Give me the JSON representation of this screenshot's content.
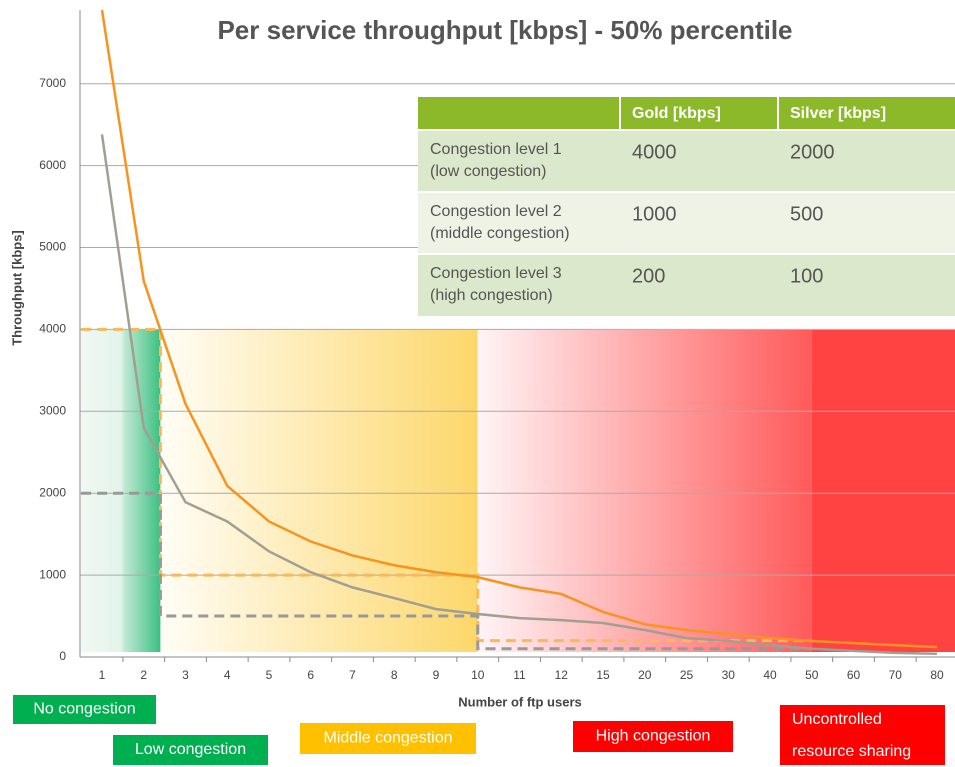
{
  "chart_data": {
    "type": "line",
    "title": "Per service throughput [kbps] - 50% percentile",
    "xlabel": "Number of ftp users",
    "ylabel": "Throughput [kbps]",
    "categories": [
      "1",
      "2",
      "3",
      "4",
      "5",
      "6",
      "7",
      "8",
      "9",
      "10",
      "11",
      "12",
      "15",
      "20",
      "25",
      "30",
      "40",
      "50",
      "60",
      "70",
      "80"
    ],
    "series": [
      {
        "color": "#f7931e",
        "values": [
          7900,
          4590,
          3090,
          2090,
          1655,
          1410,
          1240,
          1120,
          1035,
          975,
          850,
          770,
          550,
          400,
          330,
          280,
          230,
          195,
          170,
          145,
          120
        ]
      },
      {
        "color": "#a39e92",
        "values": [
          6380,
          2800,
          1890,
          1655,
          1290,
          1035,
          850,
          720,
          585,
          525,
          475,
          450,
          415,
          330,
          230,
          195,
          145,
          100,
          75,
          50,
          40
        ]
      }
    ],
    "ylim": [
      0,
      7900
    ],
    "yticks": [
      0,
      1000,
      2000,
      3000,
      4000,
      5000,
      6000,
      7000
    ],
    "grid": true
  },
  "table": {
    "columns": [
      "Gold [kbps]",
      "Silver [kbps]"
    ],
    "rows": [
      {
        "label": [
          "Congestion level 1",
          "(low congestion)"
        ],
        "values": [
          4000,
          2000
        ]
      },
      {
        "label": [
          "Congestion level 2",
          "(middle congestion)"
        ],
        "values": [
          1000,
          500
        ]
      },
      {
        "label": [
          "Congestion level 3",
          "(high congestion)"
        ],
        "values": [
          200,
          100
        ]
      }
    ]
  },
  "zones": [
    [
      "No congestion"
    ],
    [
      "Low congestion"
    ],
    [
      "Middle congestion"
    ],
    [
      "High congestion"
    ],
    [
      "Uncontrolled",
      "resource sharing"
    ]
  ]
}
